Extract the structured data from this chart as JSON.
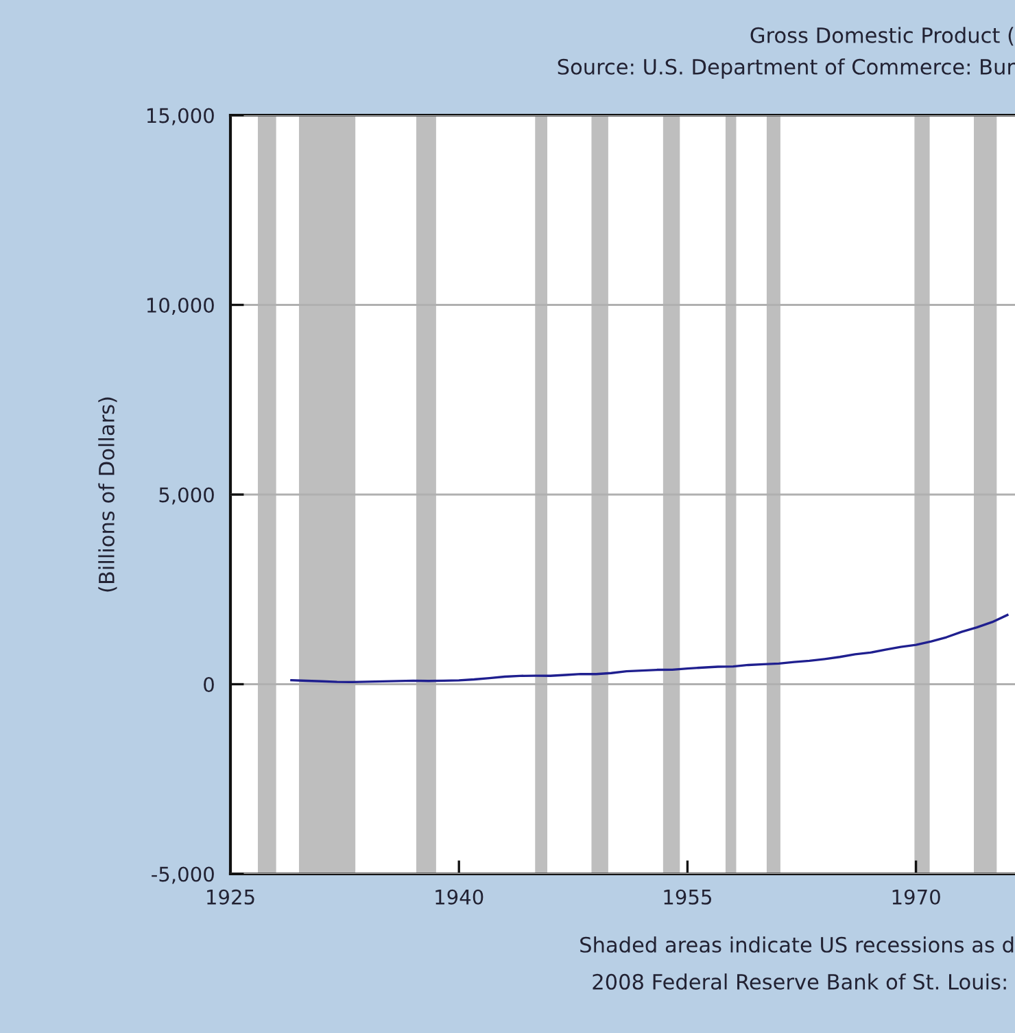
{
  "chart_data": {
    "type": "line",
    "title": "Gross Domestic Product (",
    "subtitle": "Source: U.S. Department of Commerce: Bur",
    "ylabel": "(Billions of Dollars)",
    "annotations": [
      "Shaded areas indicate US recessions as d",
      "2008 Federal Reserve Bank of St. Louis: "
    ],
    "x": [
      1929,
      1930,
      1931,
      1932,
      1933,
      1934,
      1935,
      1936,
      1937,
      1938,
      1939,
      1940,
      1941,
      1942,
      1943,
      1944,
      1945,
      1946,
      1947,
      1948,
      1949,
      1950,
      1951,
      1952,
      1953,
      1954,
      1955,
      1956,
      1957,
      1958,
      1959,
      1960,
      1961,
      1962,
      1963,
      1964,
      1965,
      1966,
      1967,
      1968,
      1969,
      1970,
      1971,
      1972,
      1973,
      1974,
      1975,
      1976
    ],
    "series": [
      {
        "color": "#1f1f8f",
        "values": [
          104,
          91,
          77,
          60,
          57,
          66,
          74,
          84,
          92,
          86,
          92,
          101,
          127,
          162,
          199,
          220,
          223,
          222,
          244,
          270,
          267,
          294,
          340,
          358,
          379,
          381,
          415,
          438,
          461,
          467,
          507,
          526,
          545,
          586,
          618,
          664,
          719,
          788,
          833,
          910,
          985,
          1038,
          1127,
          1238,
          1382,
          1500,
          1638,
          1825
        ]
      }
    ],
    "xlim": [
      1925,
      1976.5
    ],
    "ylim": [
      -5000,
      15000
    ],
    "xticks": [
      1925,
      1940,
      1955,
      1970
    ],
    "yticks": [
      {
        "value": -5000,
        "label": "-5,000"
      },
      {
        "value": 0,
        "label": "0"
      },
      {
        "value": 5000,
        "label": "5,000"
      },
      {
        "value": 10000,
        "label": "10,000"
      },
      {
        "value": 15000,
        "label": "15,000"
      }
    ],
    "grid": "y",
    "line_style": "solid",
    "marker": "none",
    "bands": [
      {
        "axis": "x",
        "from": 1926.8,
        "to": 1928.0,
        "color": "#bebebe"
      },
      {
        "axis": "x",
        "from": 1929.5,
        "to": 1933.2,
        "color": "#bebebe"
      },
      {
        "axis": "x",
        "from": 1937.2,
        "to": 1938.5,
        "color": "#bebebe"
      },
      {
        "axis": "x",
        "from": 1945.0,
        "to": 1945.8,
        "color": "#bebebe"
      },
      {
        "axis": "x",
        "from": 1948.7,
        "to": 1949.8,
        "color": "#bebebe"
      },
      {
        "axis": "x",
        "from": 1953.4,
        "to": 1954.5,
        "color": "#bebebe"
      },
      {
        "axis": "x",
        "from": 1957.5,
        "to": 1958.2,
        "color": "#bebebe"
      },
      {
        "axis": "x",
        "from": 1960.2,
        "to": 1961.1,
        "color": "#bebebe"
      },
      {
        "axis": "x",
        "from": 1969.9,
        "to": 1970.9,
        "color": "#bebebe"
      },
      {
        "axis": "x",
        "from": 1973.8,
        "to": 1975.3,
        "color": "#bebebe"
      }
    ]
  }
}
